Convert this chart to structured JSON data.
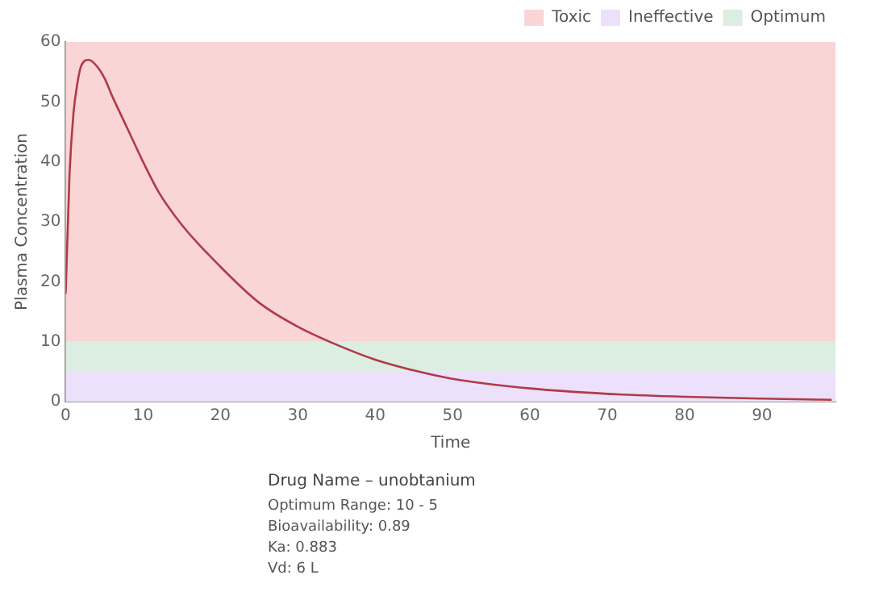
{
  "chart_data": {
    "type": "line",
    "xlabel": "Time",
    "ylabel": "Plasma Concentration",
    "x": [
      0,
      0.5,
      1,
      1.5,
      2,
      3,
      4,
      5,
      6,
      8,
      10,
      12,
      15,
      20,
      25,
      30,
      35,
      40,
      45,
      50,
      60,
      70,
      80,
      90,
      99
    ],
    "series": [
      {
        "color": "#b03a48",
        "values": [
          18,
          38,
          48,
          53,
          56,
          57,
          56,
          54,
          51,
          45.5,
          40,
          35,
          29.5,
          22.5,
          16.5,
          12.5,
          9.5,
          7,
          5.2,
          3.8,
          2.2,
          1.3,
          0.8,
          0.5,
          0.3
        ]
      }
    ],
    "xlim": [
      0,
      99.5
    ],
    "xticks": [
      0,
      10,
      20,
      30,
      40,
      50,
      60,
      70,
      80,
      90
    ],
    "ylim": [
      0,
      60
    ],
    "yticks": [
      0,
      10,
      20,
      30,
      40,
      50,
      60
    ],
    "bands": [
      {
        "axis": "y",
        "from": 10,
        "to": 60,
        "label": "Toxic",
        "color": "#f9d5d6"
      },
      {
        "axis": "y",
        "from": 0,
        "to": 5,
        "label": "Ineffective",
        "color": "#ede0fa"
      },
      {
        "axis": "y",
        "from": 5,
        "to": 10,
        "label": "Optimum",
        "color": "#dcede2"
      }
    ],
    "legend": "top right",
    "grid": false,
    "marker": "none",
    "annotations": [
      "Drug Name – unobtanium",
      "Optimum Range: 10 - 5",
      "Bioavailability: 0.89",
      "Ka: 0.883",
      "Vd: 6 L"
    ]
  }
}
